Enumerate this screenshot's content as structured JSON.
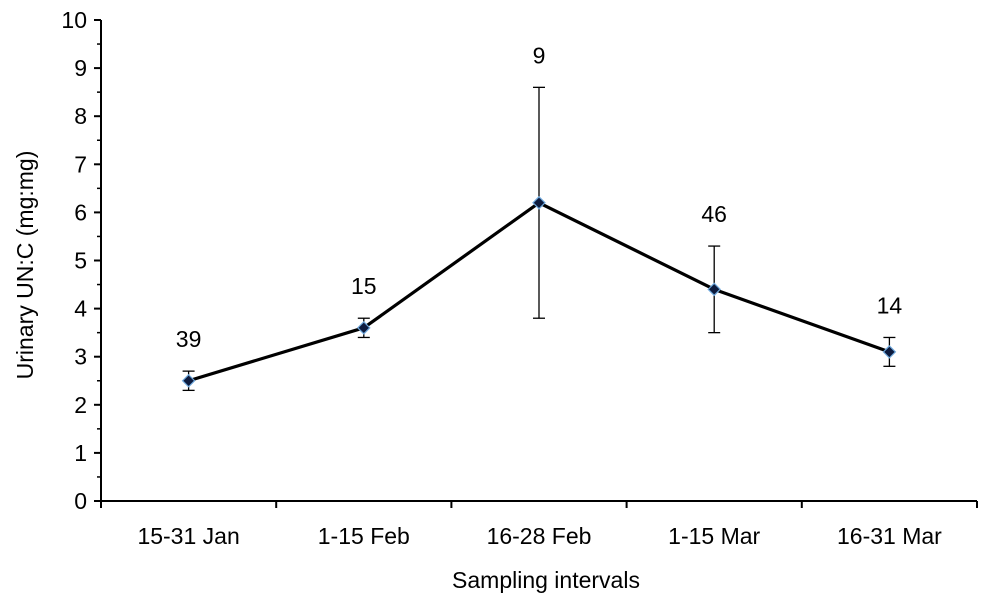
{
  "chart_data": {
    "type": "line",
    "title": "",
    "xlabel": "Sampling intervals",
    "ylabel": "Urinary UN:C (mg:mg)",
    "categories": [
      "15-31 Jan",
      "1-15 Feb",
      "16-28 Feb",
      "1-15 Mar",
      "16-31 Mar"
    ],
    "series": [
      {
        "values": [
          2.5,
          3.6,
          6.2,
          4.4,
          3.1
        ],
        "error_low": [
          2.3,
          3.4,
          3.8,
          3.5,
          2.8
        ],
        "error_high": [
          2.7,
          3.8,
          8.6,
          5.3,
          3.4
        ],
        "sample_sizes": [
          "39",
          "15",
          "9",
          "46",
          "14"
        ]
      }
    ],
    "ylim": [
      0,
      10
    ],
    "yticks": [
      "0",
      "1",
      "2",
      "3",
      "4",
      "5",
      "6",
      "7",
      "8",
      "9",
      "10"
    ],
    "grid": false,
    "legend": "none",
    "colors": {
      "line": "#000000",
      "marker_fill": "#0d1b3e",
      "marker_edge": "#6fa8dc",
      "axis": "#000000"
    }
  }
}
